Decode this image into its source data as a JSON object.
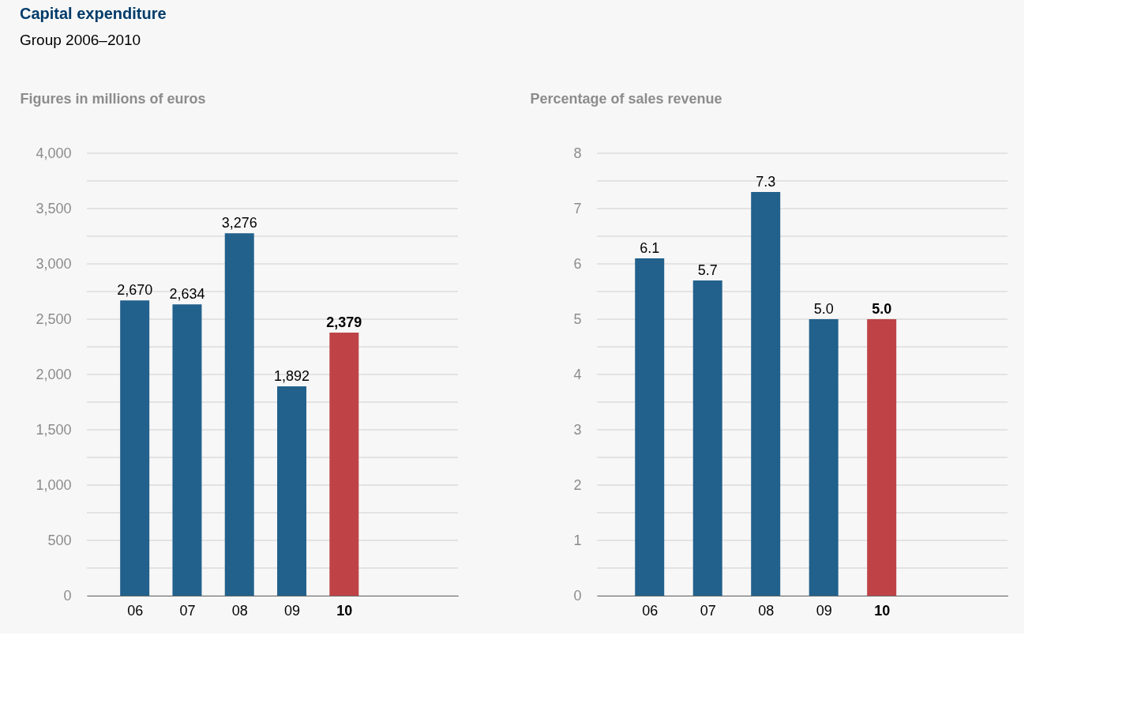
{
  "chart_data": [
    {
      "type": "bar",
      "title": "Capital expenditure",
      "subtitle": "Group 2006–2010",
      "ylabel": "Figures in millions of euros",
      "categories": [
        "06",
        "07",
        "08",
        "09",
        "10"
      ],
      "values": [
        2670,
        2634,
        3276,
        1892,
        2379
      ],
      "value_labels": [
        "2,670",
        "2,634",
        "3,276",
        "1,892",
        "2,379"
      ],
      "colors": [
        "#22618c",
        "#22618c",
        "#22618c",
        "#22618c",
        "#bf4346"
      ],
      "ylim": [
        0,
        4000
      ],
      "yticks": [
        0,
        {
          "value": 250,
          "label": null
        },
        500,
        {
          "value": 750,
          "label": null
        },
        {
          "value": 1000,
          "label": "1,000"
        },
        {
          "value": 1250,
          "label": null
        },
        {
          "value": 1500,
          "label": "1,500"
        },
        {
          "value": 1750,
          "label": null
        },
        {
          "value": 2000,
          "label": "2,000"
        },
        {
          "value": 2250,
          "label": null
        },
        {
          "value": 2500,
          "label": "2,500"
        },
        {
          "value": 2750,
          "label": null
        },
        {
          "value": 3000,
          "label": "3,000"
        },
        {
          "value": 3250,
          "label": null
        },
        {
          "value": 3500,
          "label": "3,500"
        },
        {
          "value": 3750,
          "label": null
        },
        {
          "value": 4000,
          "label": "4,000"
        }
      ],
      "grid": "y",
      "legend": false
    },
    {
      "type": "bar",
      "ylabel": "Percentage of sales revenue",
      "categories": [
        "06",
        "07",
        "08",
        "09",
        "10"
      ],
      "values": [
        6.1,
        5.7,
        7.3,
        5.0,
        5.0
      ],
      "value_labels": [
        "6.1",
        "5.7",
        "7.3",
        "5.0",
        "5.0"
      ],
      "colors": [
        "#22618c",
        "#22618c",
        "#22618c",
        "#22618c",
        "#bf4346"
      ],
      "ylim": [
        0,
        8
      ],
      "yticks": [
        0,
        {
          "value": 0.5,
          "label": null
        },
        1,
        {
          "value": 1.5,
          "label": null
        },
        2,
        {
          "value": 2.5,
          "label": null
        },
        3,
        {
          "value": 3.5,
          "label": null
        },
        4,
        {
          "value": 4.5,
          "label": null
        },
        5,
        {
          "value": 5.5,
          "label": null
        },
        6,
        {
          "value": 6.5,
          "label": null
        },
        7,
        {
          "value": 7.5,
          "label": null
        },
        8
      ],
      "grid": "y",
      "legend": false
    }
  ]
}
